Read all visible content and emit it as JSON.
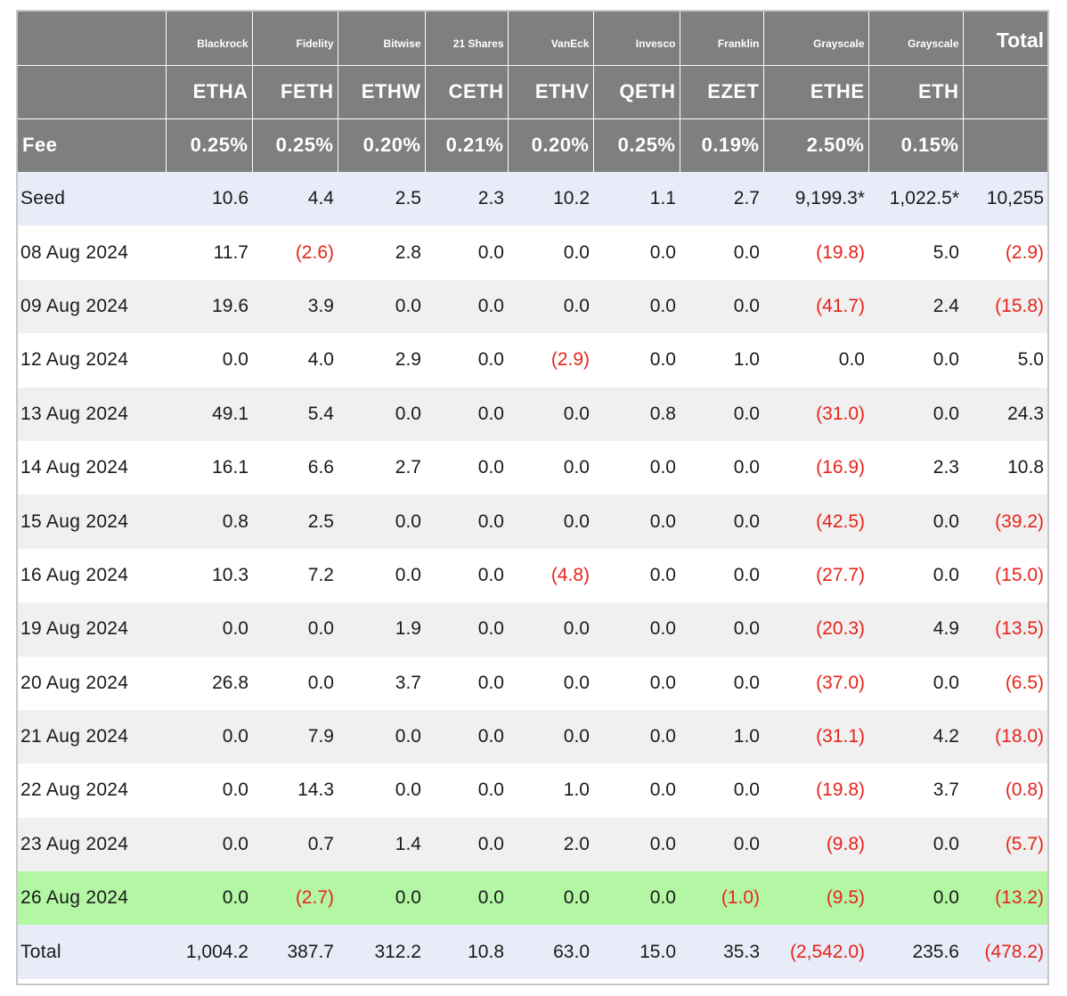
{
  "table": {
    "issuers": [
      "",
      "Blackrock",
      "Fidelity",
      "Bitwise",
      "21 Shares",
      "VanEck",
      "Invesco",
      "Franklin",
      "Grayscale",
      "Grayscale",
      "Total"
    ],
    "tickers": [
      "",
      "ETHA",
      "FETH",
      "ETHW",
      "CETH",
      "ETHV",
      "QETH",
      "EZET",
      "ETHE",
      "ETH",
      ""
    ],
    "fees": [
      "Fee",
      "0.25%",
      "0.25%",
      "0.20%",
      "0.21%",
      "0.20%",
      "0.25%",
      "0.19%",
      "2.50%",
      "0.15%",
      ""
    ],
    "rows": [
      [
        "Seed",
        "10.6",
        "4.4",
        "2.5",
        "2.3",
        "10.2",
        "1.1",
        "2.7",
        "9,199.3*",
        "1,022.5*",
        "10,255"
      ],
      [
        "08 Aug 2024",
        "11.7",
        "(2.6)",
        "2.8",
        "0.0",
        "0.0",
        "0.0",
        "0.0",
        "(19.8)",
        "5.0",
        "(2.9)"
      ],
      [
        "09 Aug 2024",
        "19.6",
        "3.9",
        "0.0",
        "0.0",
        "0.0",
        "0.0",
        "0.0",
        "(41.7)",
        "2.4",
        "(15.8)"
      ],
      [
        "12 Aug 2024",
        "0.0",
        "4.0",
        "2.9",
        "0.0",
        "(2.9)",
        "0.0",
        "1.0",
        "0.0",
        "0.0",
        "5.0"
      ],
      [
        "13 Aug 2024",
        "49.1",
        "5.4",
        "0.0",
        "0.0",
        "0.0",
        "0.8",
        "0.0",
        "(31.0)",
        "0.0",
        "24.3"
      ],
      [
        "14 Aug 2024",
        "16.1",
        "6.6",
        "2.7",
        "0.0",
        "0.0",
        "0.0",
        "0.0",
        "(16.9)",
        "2.3",
        "10.8"
      ],
      [
        "15 Aug 2024",
        "0.8",
        "2.5",
        "0.0",
        "0.0",
        "0.0",
        "0.0",
        "0.0",
        "(42.5)",
        "0.0",
        "(39.2)"
      ],
      [
        "16 Aug 2024",
        "10.3",
        "7.2",
        "0.0",
        "0.0",
        "(4.8)",
        "0.0",
        "0.0",
        "(27.7)",
        "0.0",
        "(15.0)"
      ],
      [
        "19 Aug 2024",
        "0.0",
        "0.0",
        "1.9",
        "0.0",
        "0.0",
        "0.0",
        "0.0",
        "(20.3)",
        "4.9",
        "(13.5)"
      ],
      [
        "20 Aug 2024",
        "26.8",
        "0.0",
        "3.7",
        "0.0",
        "0.0",
        "0.0",
        "0.0",
        "(37.0)",
        "0.0",
        "(6.5)"
      ],
      [
        "21 Aug 2024",
        "0.0",
        "7.9",
        "0.0",
        "0.0",
        "0.0",
        "0.0",
        "1.0",
        "(31.1)",
        "4.2",
        "(18.0)"
      ],
      [
        "22 Aug 2024",
        "0.0",
        "14.3",
        "0.0",
        "0.0",
        "1.0",
        "0.0",
        "0.0",
        "(19.8)",
        "3.7",
        "(0.8)"
      ],
      [
        "23 Aug 2024",
        "0.0",
        "0.7",
        "1.4",
        "0.0",
        "2.0",
        "0.0",
        "0.0",
        "(9.8)",
        "0.0",
        "(5.7)"
      ],
      [
        "26 Aug 2024",
        "0.0",
        "(2.7)",
        "0.0",
        "0.0",
        "0.0",
        "0.0",
        "(1.0)",
        "(9.5)",
        "0.0",
        "(13.2)"
      ],
      [
        "Total",
        "1,004.2",
        "387.7",
        "312.2",
        "10.8",
        "63.0",
        "15.0",
        "35.3",
        "(2,542.0)",
        "235.6",
        "(478.2)"
      ]
    ]
  },
  "colors": {
    "header_bg": "#7f7f7f",
    "negative": "#e8231a",
    "highlight_row": "#b3f7a4",
    "summary_row": "#e8ecf8"
  }
}
